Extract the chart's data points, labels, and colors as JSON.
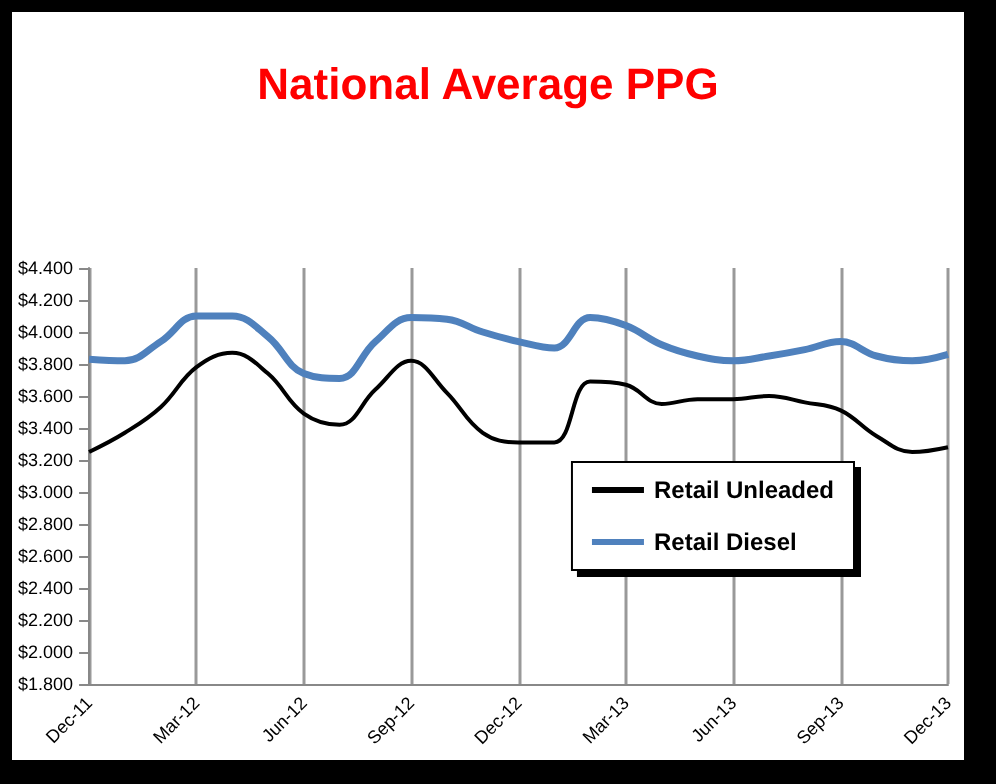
{
  "chart_data": {
    "type": "line",
    "title": "National Average PPG",
    "categories": [
      "Dec-11",
      null,
      null,
      "Mar-12",
      null,
      null,
      "Jun-12",
      null,
      null,
      "Sep-12",
      null,
      null,
      "Dec-12",
      null,
      null,
      "Mar-13",
      null,
      null,
      "Jun-13",
      null,
      null,
      "Sep-13",
      null,
      null,
      "Dec-13"
    ],
    "series": [
      {
        "name": "Retail Unleaded",
        "color": "#000000",
        "values": [
          3.25,
          3.37,
          3.53,
          3.78,
          3.87,
          3.74,
          3.49,
          3.42,
          3.64,
          3.82,
          3.62,
          3.37,
          3.31,
          3.31,
          3.69,
          3.67,
          3.55,
          3.58,
          3.58,
          3.6,
          3.56,
          3.51,
          3.35,
          3.25,
          3.28
        ]
      },
      {
        "name": "Retail Diesel",
        "color": "#4f81bd",
        "values": [
          3.83,
          3.82,
          3.94,
          4.1,
          4.1,
          3.97,
          3.74,
          3.71,
          3.94,
          4.09,
          4.08,
          4.0,
          3.94,
          3.9,
          4.09,
          4.04,
          3.92,
          3.85,
          3.82,
          3.85,
          3.89,
          3.94,
          3.85,
          3.82,
          3.86
        ]
      }
    ],
    "ylim": [
      1.8,
      4.4
    ],
    "yticks": [
      {
        "value": 1.8,
        "label": "$1.800"
      },
      {
        "value": 2.0,
        "label": "$2.000"
      },
      {
        "value": 2.2,
        "label": "$2.200"
      },
      {
        "value": 2.4,
        "label": "$2.400"
      },
      {
        "value": 2.6,
        "label": "$2.600"
      },
      {
        "value": 2.8,
        "label": "$2.800"
      },
      {
        "value": 3.0,
        "label": "$3.000"
      },
      {
        "value": 3.2,
        "label": "$3.200"
      },
      {
        "value": 3.4,
        "label": "$3.400"
      },
      {
        "value": 3.6,
        "label": "$3.600"
      },
      {
        "value": 3.8,
        "label": "$3.800"
      },
      {
        "value": 4.0,
        "label": "$4.000"
      },
      {
        "value": 4.2,
        "label": "$4.200"
      },
      {
        "value": 4.4,
        "label": "$4.400"
      }
    ],
    "grid": "x",
    "legend": "bottom right",
    "marker": "none",
    "line_style": "solid"
  }
}
